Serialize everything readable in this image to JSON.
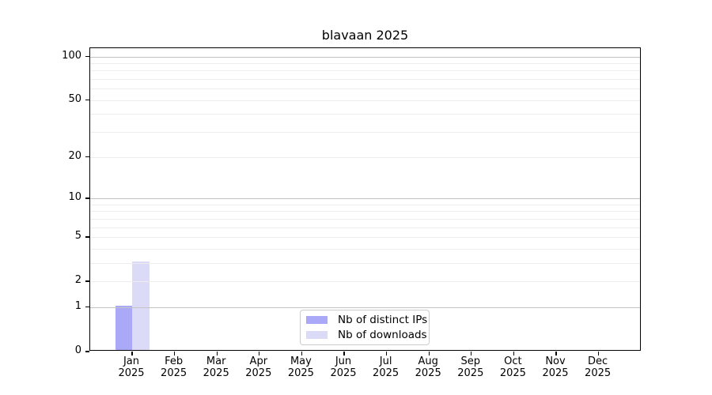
{
  "chart_data": {
    "type": "bar",
    "title": "blavaan 2025",
    "categories": [
      "Jan",
      "Feb",
      "Mar",
      "Apr",
      "May",
      "Jun",
      "Jul",
      "Aug",
      "Sep",
      "Oct",
      "Nov",
      "Dec"
    ],
    "category_year": "2025",
    "series": [
      {
        "name": "Nb of distinct IPs",
        "color": "#a9a9f7",
        "values": [
          1,
          0,
          0,
          0,
          0,
          0,
          0,
          0,
          0,
          0,
          0,
          0
        ]
      },
      {
        "name": "Nb of downloads",
        "color": "#dbdbf8",
        "values": [
          3,
          0,
          0,
          0,
          0,
          0,
          0,
          0,
          0,
          0,
          0,
          0
        ]
      }
    ],
    "yscale": "log1p",
    "ylim": [
      0,
      114
    ],
    "yticks": [
      0,
      1,
      2,
      5,
      10,
      20,
      50,
      100
    ],
    "grid": "on",
    "grid_major": [
      1,
      10,
      100
    ],
    "grid_minor": [
      2,
      3,
      4,
      5,
      6,
      7,
      8,
      9,
      20,
      30,
      40,
      50,
      60,
      70,
      80,
      90
    ],
    "legend_position": "lower center",
    "colors": {
      "major_grid": "#c3c3c3",
      "minor_grid": "#ededed",
      "spine": "#000000",
      "background": "#ffffff"
    }
  }
}
